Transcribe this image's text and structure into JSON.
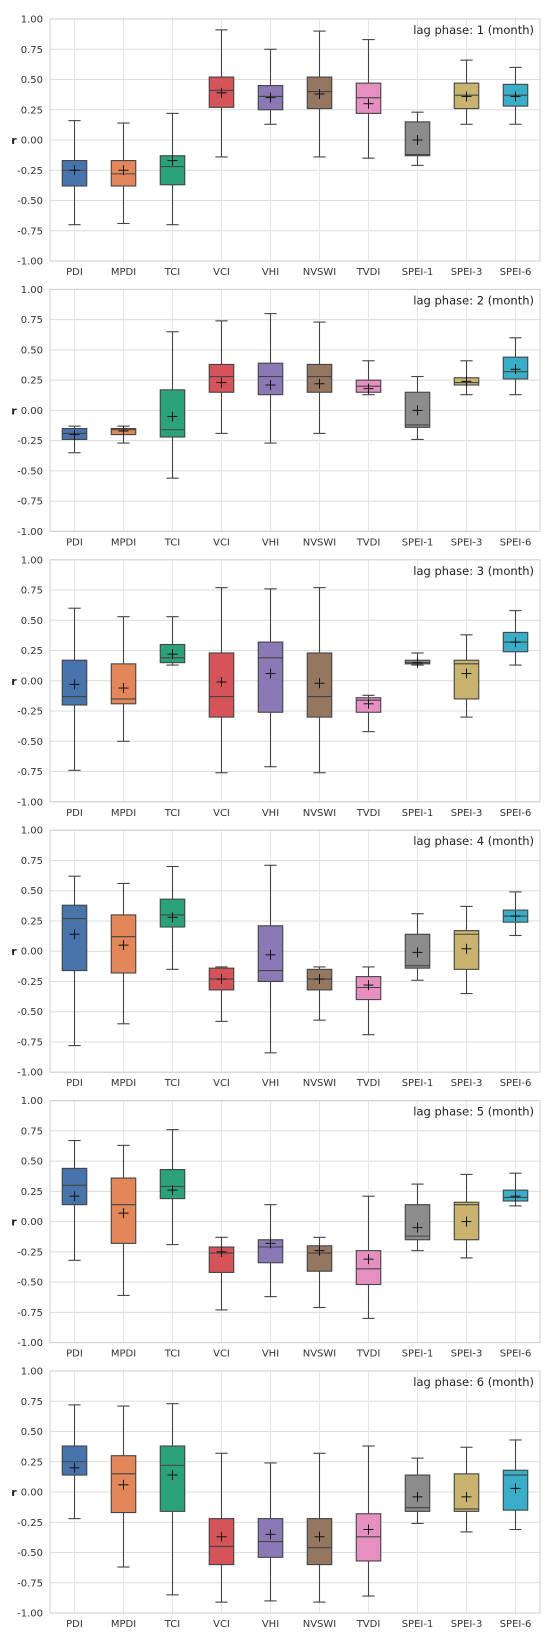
{
  "chart_data": {
    "type": "boxplot",
    "categories": [
      "PDI",
      "MPDI",
      "TCI",
      "VCI",
      "VHI",
      "NVSWI",
      "TVDI",
      "SPEI-1",
      "SPEI-3",
      "SPEI-6"
    ],
    "colors": [
      "#4874ad",
      "#e3875a",
      "#2ba27a",
      "#d45459",
      "#8a79b4",
      "#957660",
      "#e68fc1",
      "#8c8c8c",
      "#c8b46f",
      "#3aaec9"
    ],
    "ylabel": "r",
    "ylim": [
      -1.0,
      1.0
    ],
    "yticks": [
      "1.00",
      "0.75",
      "0.50",
      "0.25",
      "0.00",
      "-0.25",
      "-0.50",
      "-0.75",
      "-1.00"
    ],
    "grid": true,
    "panels": [
      {
        "title": "lag phase: 1 (month)",
        "boxes": [
          {
            "min": -0.7,
            "q1": -0.38,
            "median": -0.25,
            "q3": -0.17,
            "max": 0.16,
            "mean": -0.25
          },
          {
            "min": -0.69,
            "q1": -0.38,
            "median": -0.28,
            "q3": -0.17,
            "max": 0.14,
            "mean": -0.25
          },
          {
            "min": -0.7,
            "q1": -0.37,
            "median": -0.22,
            "q3": -0.13,
            "max": 0.22,
            "mean": -0.17
          },
          {
            "min": -0.14,
            "q1": 0.27,
            "median": 0.41,
            "q3": 0.52,
            "max": 0.91,
            "mean": 0.39
          },
          {
            "min": 0.13,
            "q1": 0.25,
            "median": 0.36,
            "q3": 0.45,
            "max": 0.75,
            "mean": 0.35
          },
          {
            "min": -0.14,
            "q1": 0.26,
            "median": 0.4,
            "q3": 0.52,
            "max": 0.9,
            "mean": 0.38
          },
          {
            "min": -0.15,
            "q1": 0.22,
            "median": 0.35,
            "q3": 0.47,
            "max": 0.83,
            "mean": 0.3
          },
          {
            "min": -0.21,
            "q1": -0.13,
            "median": -0.12,
            "q3": 0.15,
            "max": 0.23,
            "mean": 0.0
          },
          {
            "min": 0.13,
            "q1": 0.26,
            "median": 0.37,
            "q3": 0.47,
            "max": 0.66,
            "mean": 0.36
          },
          {
            "min": 0.13,
            "q1": 0.28,
            "median": 0.37,
            "q3": 0.46,
            "max": 0.6,
            "mean": 0.36
          }
        ]
      },
      {
        "title": "lag phase: 2 (month)",
        "boxes": [
          {
            "min": -0.35,
            "q1": -0.24,
            "median": -0.19,
            "q3": -0.15,
            "max": -0.13,
            "mean": -0.2
          },
          {
            "min": -0.27,
            "q1": -0.2,
            "median": -0.16,
            "q3": -0.15,
            "max": -0.13,
            "mean": -0.17
          },
          {
            "min": -0.56,
            "q1": -0.22,
            "median": -0.16,
            "q3": 0.17,
            "max": 0.65,
            "mean": -0.05
          },
          {
            "min": -0.19,
            "q1": 0.15,
            "median": 0.28,
            "q3": 0.38,
            "max": 0.74,
            "mean": 0.23
          },
          {
            "min": -0.27,
            "q1": 0.13,
            "median": 0.28,
            "q3": 0.39,
            "max": 0.8,
            "mean": 0.21
          },
          {
            "min": -0.19,
            "q1": 0.15,
            "median": 0.28,
            "q3": 0.38,
            "max": 0.73,
            "mean": 0.22
          },
          {
            "min": 0.13,
            "q1": 0.15,
            "median": 0.2,
            "q3": 0.25,
            "max": 0.41,
            "mean": 0.18
          },
          {
            "min": -0.24,
            "q1": -0.14,
            "median": -0.12,
            "q3": 0.15,
            "max": 0.28,
            "mean": 0.0
          },
          {
            "min": 0.13,
            "q1": 0.21,
            "median": 0.23,
            "q3": 0.27,
            "max": 0.41,
            "mean": 0.24
          },
          {
            "min": 0.13,
            "q1": 0.26,
            "median": 0.32,
            "q3": 0.44,
            "max": 0.6,
            "mean": 0.34
          }
        ]
      },
      {
        "title": "lag phase: 3 (month)",
        "boxes": [
          {
            "min": -0.74,
            "q1": -0.2,
            "median": -0.13,
            "q3": 0.17,
            "max": 0.6,
            "mean": -0.03
          },
          {
            "min": -0.5,
            "q1": -0.19,
            "median": -0.15,
            "q3": 0.14,
            "max": 0.53,
            "mean": -0.06
          },
          {
            "min": 0.13,
            "q1": 0.15,
            "median": 0.19,
            "q3": 0.3,
            "max": 0.53,
            "mean": 0.22
          },
          {
            "min": -0.76,
            "q1": -0.3,
            "median": -0.13,
            "q3": 0.23,
            "max": 0.77,
            "mean": -0.01
          },
          {
            "min": -0.71,
            "q1": -0.26,
            "median": 0.19,
            "q3": 0.32,
            "max": 0.76,
            "mean": 0.06
          },
          {
            "min": -0.76,
            "q1": -0.3,
            "median": -0.13,
            "q3": 0.23,
            "max": 0.77,
            "mean": -0.02
          },
          {
            "min": -0.42,
            "q1": -0.26,
            "median": -0.16,
            "q3": -0.14,
            "max": -0.12,
            "mean": -0.19
          },
          {
            "min": 0.13,
            "q1": 0.14,
            "median": 0.15,
            "q3": 0.17,
            "max": 0.23,
            "mean": 0.15
          },
          {
            "min": -0.3,
            "q1": -0.15,
            "median": 0.14,
            "q3": 0.17,
            "max": 0.38,
            "mean": 0.06
          },
          {
            "min": 0.13,
            "q1": 0.24,
            "median": 0.32,
            "q3": 0.4,
            "max": 0.58,
            "mean": 0.32
          }
        ]
      },
      {
        "title": "lag phase: 4 (month)",
        "boxes": [
          {
            "min": -0.78,
            "q1": -0.16,
            "median": 0.27,
            "q3": 0.38,
            "max": 0.62,
            "mean": 0.14
          },
          {
            "min": -0.6,
            "q1": -0.18,
            "median": 0.12,
            "q3": 0.3,
            "max": 0.56,
            "mean": 0.05
          },
          {
            "min": -0.15,
            "q1": 0.2,
            "median": 0.3,
            "q3": 0.43,
            "max": 0.7,
            "mean": 0.28
          },
          {
            "min": -0.58,
            "q1": -0.32,
            "median": -0.23,
            "q3": -0.14,
            "max": -0.13,
            "mean": -0.23
          },
          {
            "min": -0.84,
            "q1": -0.25,
            "median": -0.16,
            "q3": 0.21,
            "max": 0.71,
            "mean": -0.03
          },
          {
            "min": -0.57,
            "q1": -0.32,
            "median": -0.23,
            "q3": -0.15,
            "max": -0.13,
            "mean": -0.23
          },
          {
            "min": -0.69,
            "q1": -0.4,
            "median": -0.3,
            "q3": -0.21,
            "max": -0.13,
            "mean": -0.28
          },
          {
            "min": -0.24,
            "q1": -0.14,
            "median": -0.12,
            "q3": 0.14,
            "max": 0.31,
            "mean": -0.01
          },
          {
            "min": -0.35,
            "q1": -0.15,
            "median": 0.14,
            "q3": 0.17,
            "max": 0.37,
            "mean": 0.02
          },
          {
            "min": 0.13,
            "q1": 0.24,
            "median": 0.29,
            "q3": 0.34,
            "max": 0.49,
            "mean": 0.29
          }
        ]
      },
      {
        "title": "lag phase: 5 (month)",
        "boxes": [
          {
            "min": -0.32,
            "q1": 0.14,
            "median": 0.3,
            "q3": 0.44,
            "max": 0.67,
            "mean": 0.21
          },
          {
            "min": -0.61,
            "q1": -0.18,
            "median": 0.14,
            "q3": 0.36,
            "max": 0.63,
            "mean": 0.07
          },
          {
            "min": -0.19,
            "q1": 0.19,
            "median": 0.29,
            "q3": 0.43,
            "max": 0.76,
            "mean": 0.26
          },
          {
            "min": -0.73,
            "q1": -0.42,
            "median": -0.26,
            "q3": -0.21,
            "max": -0.13,
            "mean": -0.25
          },
          {
            "min": -0.62,
            "q1": -0.34,
            "median": -0.21,
            "q3": -0.15,
            "max": 0.14,
            "mean": -0.18
          },
          {
            "min": -0.71,
            "q1": -0.41,
            "median": -0.26,
            "q3": -0.2,
            "max": -0.13,
            "mean": -0.24
          },
          {
            "min": -0.8,
            "q1": -0.52,
            "median": -0.39,
            "q3": -0.24,
            "max": 0.21,
            "mean": -0.31
          },
          {
            "min": -0.24,
            "q1": -0.15,
            "median": -0.12,
            "q3": 0.14,
            "max": 0.31,
            "mean": -0.05
          },
          {
            "min": -0.3,
            "q1": -0.15,
            "median": 0.14,
            "q3": 0.16,
            "max": 0.39,
            "mean": 0.0
          },
          {
            "min": 0.13,
            "q1": 0.17,
            "median": 0.2,
            "q3": 0.26,
            "max": 0.4,
            "mean": 0.21
          }
        ]
      },
      {
        "title": "lag phase: 6 (month)",
        "boxes": [
          {
            "min": -0.22,
            "q1": 0.14,
            "median": 0.25,
            "q3": 0.38,
            "max": 0.72,
            "mean": 0.2
          },
          {
            "min": -0.62,
            "q1": -0.17,
            "median": 0.15,
            "q3": 0.3,
            "max": 0.71,
            "mean": 0.06
          },
          {
            "min": -0.85,
            "q1": -0.16,
            "median": 0.22,
            "q3": 0.38,
            "max": 0.73,
            "mean": 0.14
          },
          {
            "min": -0.91,
            "q1": -0.6,
            "median": -0.45,
            "q3": -0.22,
            "max": 0.32,
            "mean": -0.37
          },
          {
            "min": -0.9,
            "q1": -0.54,
            "median": -0.41,
            "q3": -0.22,
            "max": 0.24,
            "mean": -0.35
          },
          {
            "min": -0.91,
            "q1": -0.6,
            "median": -0.46,
            "q3": -0.22,
            "max": 0.32,
            "mean": -0.37
          },
          {
            "min": -0.86,
            "q1": -0.57,
            "median": -0.37,
            "q3": -0.18,
            "max": 0.38,
            "mean": -0.31
          },
          {
            "min": -0.26,
            "q1": -0.16,
            "median": -0.13,
            "q3": 0.14,
            "max": 0.28,
            "mean": -0.04
          },
          {
            "min": -0.33,
            "q1": -0.16,
            "median": -0.14,
            "q3": 0.15,
            "max": 0.37,
            "mean": -0.04
          },
          {
            "min": -0.31,
            "q1": -0.15,
            "median": 0.14,
            "q3": 0.18,
            "max": 0.43,
            "mean": 0.03
          }
        ]
      }
    ]
  }
}
